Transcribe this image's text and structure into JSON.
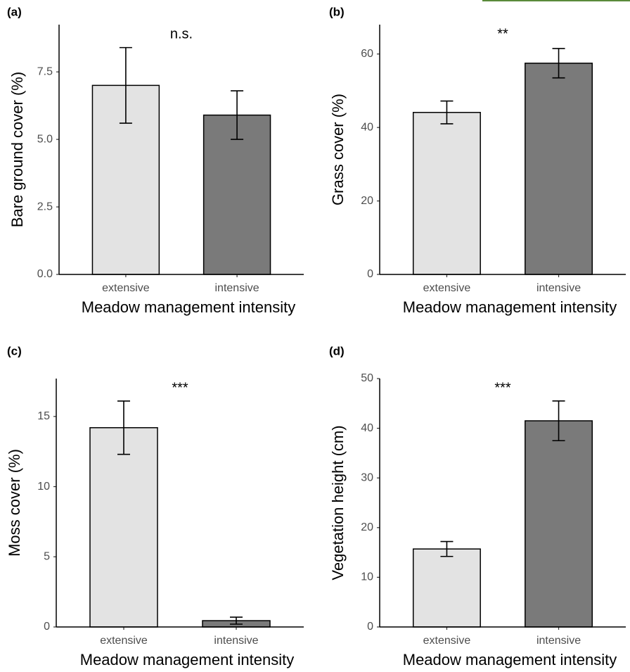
{
  "chart_data": [
    {
      "type": "bar",
      "panel_label": "(a)",
      "annotation": "n.s.",
      "y_label": "Bare ground cover (%)",
      "x_label": "Meadow management intensity",
      "categories": [
        "extensive",
        "intensive"
      ],
      "values": [
        7.0,
        5.9
      ],
      "errors": [
        1.4,
        0.9
      ],
      "colors": [
        "#e3e3e3",
        "#7a7a7a"
      ],
      "ylim": [
        0,
        9.25
      ],
      "yticks": [
        {
          "value": 0,
          "label": "0.0"
        },
        2.5,
        {
          "value": 5,
          "label": "5.0"
        },
        7.5
      ]
    },
    {
      "type": "bar",
      "panel_label": "(b)",
      "annotation": "**",
      "y_label": "Grass cover (%)",
      "x_label": "Meadow management intensity",
      "categories": [
        "extensive",
        "intensive"
      ],
      "values": [
        44.1,
        57.5
      ],
      "errors": [
        3.1,
        4.0
      ],
      "colors": [
        "#e3e3e3",
        "#7a7a7a"
      ],
      "ylim": [
        0,
        68
      ],
      "yticks": [
        0,
        20,
        40,
        60
      ]
    },
    {
      "type": "bar",
      "panel_label": "(c)",
      "annotation": "***",
      "y_label": "Moss cover (%)",
      "x_label": "Meadow management intensity",
      "categories": [
        "extensive",
        "intensive"
      ],
      "values": [
        14.2,
        0.45
      ],
      "errors": [
        1.9,
        0.25
      ],
      "colors": [
        "#e3e3e3",
        "#7a7a7a"
      ],
      "ylim": [
        0,
        17.7
      ],
      "yticks": [
        0,
        5,
        10,
        15
      ]
    },
    {
      "type": "bar",
      "panel_label": "(d)",
      "annotation": "***",
      "y_label": "Vegetation height (cm)",
      "x_label": "Meadow management intensity",
      "categories": [
        "extensive",
        "intensive"
      ],
      "values": [
        15.7,
        41.5
      ],
      "errors": [
        1.5,
        4.0
      ],
      "colors": [
        "#e3e3e3",
        "#7a7a7a"
      ],
      "ylim": [
        0,
        50
      ],
      "yticks": [
        0,
        10,
        20,
        30,
        40,
        50
      ]
    }
  ]
}
